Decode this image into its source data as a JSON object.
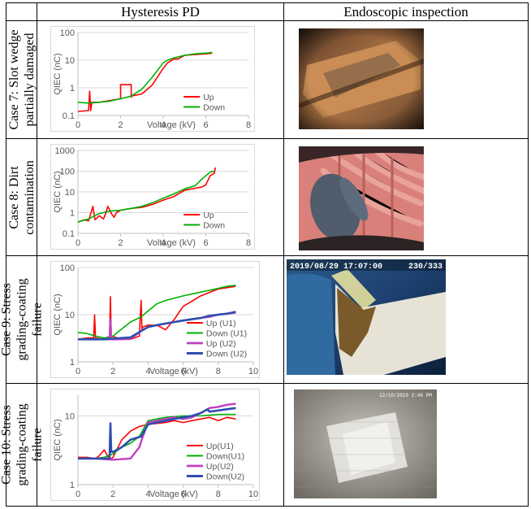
{
  "header": {
    "col_case": "",
    "col_pd": "Hysteresis PD",
    "col_endo": "Endoscopic inspection"
  },
  "cases": [
    {
      "label_line1": "Case 7: Slot wedge",
      "label_line2": "partially damaged"
    },
    {
      "label_line1": "Case 8: Dirt",
      "label_line2": "contamination"
    },
    {
      "label_line1": "Case 9: Stress",
      "label_line2": "grading-coating",
      "label_line3": "failure"
    },
    {
      "label_line1": "Case 10: Stress",
      "label_line2": "grading-coating",
      "label_line3": "failure"
    }
  ],
  "photos": [
    {
      "overlay": ""
    },
    {
      "overlay": ""
    },
    {
      "overlay": "2019/08/29 17:07:00",
      "overlay2": "230/333"
    },
    {
      "overlay": "12/10/2019 2:46 PM"
    }
  ],
  "chart_data": [
    {
      "type": "line",
      "yscale": "log",
      "xlabel": "Voltage (kV)",
      "ylabel": "QIEC (nC)",
      "xlim": [
        0,
        8
      ],
      "xticks": [
        0,
        2,
        4,
        6,
        8
      ],
      "ylim": [
        0.1,
        100
      ],
      "yticks": [
        0.1,
        1,
        10,
        100
      ],
      "ytick_labels": [
        "0.1",
        "1",
        "10",
        "100"
      ],
      "legend": "bottom-right",
      "series": [
        {
          "name": "Up",
          "color": "#ff0000",
          "width": 1.6,
          "x": [
            0,
            0.5,
            0.55,
            0.6,
            0.65,
            1,
            2,
            2,
            2.5,
            2.5,
            2.5,
            2.5,
            3,
            3.5,
            3.8,
            4,
            4.2,
            4.5,
            4.7,
            5,
            5.5,
            6,
            6.3
          ],
          "y": [
            0.14,
            0.15,
            0.75,
            0.15,
            0.3,
            0.3,
            0.4,
            1.3,
            1.3,
            0.45,
            1.2,
            0.5,
            0.6,
            1.3,
            3,
            5,
            8,
            11,
            11,
            15,
            16,
            17,
            18
          ]
        },
        {
          "name": "Down",
          "color": "#00b000",
          "width": 1.6,
          "x": [
            6.3,
            6,
            5.5,
            5,
            4.5,
            4.2,
            4,
            3.8,
            3.5,
            3,
            2.5,
            2,
            1.5,
            1,
            0.5,
            0
          ],
          "y": [
            19,
            18,
            17,
            15,
            12,
            10,
            8,
            5,
            2.5,
            0.9,
            0.5,
            0.4,
            0.33,
            0.3,
            0.28,
            0.3
          ]
        }
      ]
    },
    {
      "type": "line",
      "yscale": "log",
      "xlabel": "Voltage (kV)",
      "ylabel": "QIEC (nC)",
      "xlim": [
        0,
        8
      ],
      "xticks": [
        0,
        2,
        4,
        6,
        8
      ],
      "ylim": [
        0.1,
        1000
      ],
      "yticks": [
        0.1,
        1,
        10,
        100,
        1000
      ],
      "ytick_labels": [
        "0.1",
        "1",
        "10",
        "100",
        "1000"
      ],
      "legend": "bottom-right",
      "series": [
        {
          "name": "Up",
          "color": "#ff0000",
          "width": 1.6,
          "x": [
            0,
            0.3,
            0.5,
            0.7,
            0.8,
            1.0,
            1.2,
            1.3,
            1.4,
            1.6,
            1.7,
            1.8,
            2.0,
            2.5,
            3,
            3.5,
            4,
            4.5,
            5,
            5.5,
            5.8,
            6,
            6.2,
            6.4,
            6.45
          ],
          "y": [
            0.35,
            0.45,
            0.4,
            2.0,
            0.45,
            0.7,
            0.5,
            0.9,
            2.0,
            0.8,
            0.6,
            1.0,
            1.3,
            1.6,
            1.8,
            2.5,
            4,
            6,
            12,
            15,
            17,
            22,
            60,
            80,
            150
          ]
        },
        {
          "name": "Down",
          "color": "#00b000",
          "width": 1.6,
          "x": [
            6.4,
            6.2,
            6,
            5.8,
            5.5,
            5,
            4.5,
            4,
            3.5,
            3,
            2.5,
            2,
            1.5,
            1,
            0.5,
            0
          ],
          "y": [
            100,
            90,
            60,
            40,
            20,
            14,
            8,
            5,
            3,
            2.0,
            1.6,
            1.3,
            1.2,
            0.9,
            0.5,
            0.35
          ]
        }
      ]
    },
    {
      "type": "line",
      "yscale": "log",
      "xlabel": "Voltage (kV)",
      "ylabel": "QIEC (nC)",
      "xlim": [
        0,
        10
      ],
      "xticks": [
        0,
        2,
        4,
        6,
        8,
        10
      ],
      "ylim": [
        1,
        100
      ],
      "yticks": [
        1,
        10,
        100
      ],
      "ytick_labels": [
        "1",
        "10",
        "100"
      ],
      "legend": "bottom-right",
      "series": [
        {
          "name": "Up (U1)",
          "color": "#ff0000",
          "width": 1.6,
          "x": [
            0,
            0.5,
            0.9,
            0.95,
            1.0,
            1.5,
            1.8,
            1.85,
            1.9,
            2.5,
            3.0,
            3.5,
            3.6,
            3.65,
            3.7,
            4,
            4.5,
            5,
            5.5,
            6,
            7,
            8,
            9
          ],
          "y": [
            3,
            3.2,
            3.2,
            10,
            3.2,
            3.0,
            3.5,
            24,
            3.5,
            3.0,
            3.0,
            3.5,
            20,
            5,
            5.5,
            6,
            6,
            4.8,
            8,
            15,
            25,
            35,
            40
          ]
        },
        {
          "name": "Down (U1)",
          "color": "#00b000",
          "width": 1.6,
          "x": [
            9,
            8.5,
            8,
            7,
            6,
            5,
            4.5,
            4,
            3.6,
            3,
            2.5,
            2,
            1.5,
            1,
            0.5,
            0
          ],
          "y": [
            42,
            40,
            36,
            30,
            25,
            20,
            17,
            12,
            9,
            7,
            5,
            3.5,
            3.2,
            3.5,
            4,
            4.2
          ]
        },
        {
          "name": "Up (U2)",
          "color": "#c040c0",
          "width": 2.4,
          "x": [
            0,
            1,
            1.8,
            1.85,
            1.9,
            2.5,
            3,
            3.6,
            4,
            5,
            6,
            7,
            7.5,
            8,
            9
          ],
          "y": [
            3,
            3,
            3,
            8,
            3,
            3,
            3.1,
            4.5,
            5.5,
            6.5,
            7.5,
            8.5,
            9,
            10,
            11
          ]
        },
        {
          "name": "Down (U2)",
          "color": "#2f4fb0",
          "width": 2.6,
          "x": [
            9,
            8.5,
            8,
            7.5,
            7,
            6.5,
            6,
            5.5,
            5,
            4.5,
            4,
            3.6,
            3,
            2.5,
            2,
            1.5,
            1,
            0.5,
            0
          ],
          "y": [
            11.5,
            10.5,
            10,
            9.5,
            8.5,
            8,
            7.5,
            7,
            6.5,
            6,
            5.5,
            4.5,
            3.3,
            3.2,
            3.1,
            3,
            3,
            3,
            3
          ]
        }
      ]
    },
    {
      "type": "line",
      "yscale": "log",
      "xlabel": "Voltage (kV)",
      "ylabel": "QIEC (nC)",
      "xlim": [
        0,
        10
      ],
      "xticks": [
        0,
        2,
        4,
        6,
        8,
        10
      ],
      "ylim": [
        1,
        20
      ],
      "yticks": [
        1,
        10
      ],
      "ytick_labels": [
        "1",
        "10"
      ],
      "legend": "bottom-right",
      "series": [
        {
          "name": "Up(U1)",
          "color": "#ff0000",
          "width": 1.6,
          "x": [
            0,
            0.5,
            1,
            1.2,
            1.5,
            1.8,
            2,
            2.5,
            3,
            3.5,
            4,
            5,
            5.5,
            6,
            6.5,
            7,
            7.5,
            8,
            8.5,
            9
          ],
          "y": [
            2.5,
            2.5,
            2.4,
            2.6,
            3.2,
            2.3,
            2.5,
            4.5,
            6,
            7,
            7.5,
            8,
            8.5,
            8,
            8.5,
            9,
            9.5,
            8.5,
            9.5,
            9
          ]
        },
        {
          "name": "Down(U1)",
          "color": "#00b000",
          "width": 1.6,
          "x": [
            9,
            8,
            7,
            6,
            5,
            4.5,
            4,
            3.5,
            3,
            2.5,
            2,
            1.5,
            1,
            0.5,
            0
          ],
          "y": [
            10.5,
            10.5,
            10,
            10,
            9.5,
            9,
            8.5,
            5,
            4,
            3.5,
            2.8,
            2.5,
            2.4,
            2.4,
            2.4
          ]
        },
        {
          "name": "Up(U2)",
          "color": "#c040c0",
          "width": 2.4,
          "x": [
            0,
            1,
            2,
            3,
            3.5,
            3.7,
            4,
            5,
            5.5,
            6,
            6.5,
            7,
            7.5,
            8,
            8.5,
            9
          ],
          "y": [
            2.4,
            2.4,
            2.3,
            2.4,
            3.5,
            5,
            8,
            9,
            9.5,
            9,
            9.5,
            11,
            13,
            13.5,
            14.5,
            15
          ]
        },
        {
          "name": "Down(U2)",
          "color": "#2f4fb0",
          "width": 2.6,
          "x": [
            9,
            8.5,
            8,
            7.5,
            7.4,
            7,
            6.5,
            6,
            5.5,
            5,
            4.5,
            4,
            3.6,
            3,
            2.5,
            2,
            1.9,
            1.85,
            1.8,
            1.5,
            1,
            0.5,
            0
          ],
          "y": [
            13,
            12.5,
            12,
            11.5,
            12.5,
            11,
            10,
            9.5,
            9,
            8.5,
            8,
            7.5,
            5,
            4.5,
            3.5,
            3,
            3,
            7.8,
            2.4,
            2.4,
            2.4,
            2.4,
            2.4
          ]
        }
      ]
    }
  ]
}
